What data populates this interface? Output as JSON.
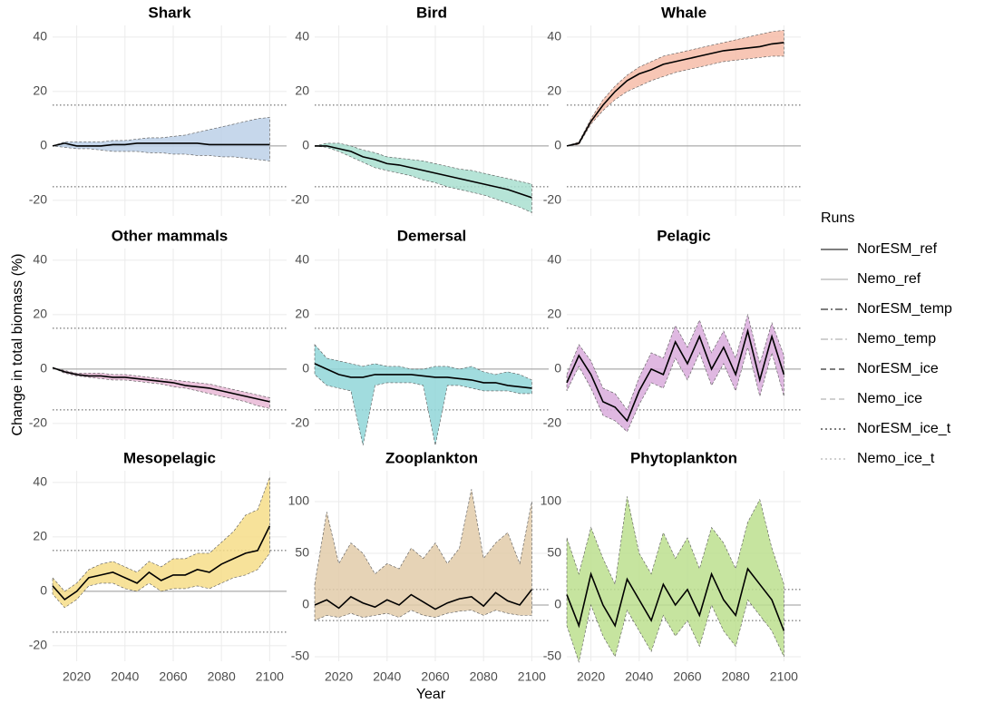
{
  "figure": {
    "xlabel": "Year",
    "ylabel": "Change in total biomass (%)",
    "legend_title": "Runs",
    "legend": [
      {
        "name": "NorESM_ref",
        "color": "#333333",
        "linestyle": "solid"
      },
      {
        "name": "Nemo_ref",
        "color": "#b5b5b5",
        "linestyle": "solid"
      },
      {
        "name": "NorESM_temp",
        "color": "#333333",
        "linestyle": "dashdot"
      },
      {
        "name": "Nemo_temp",
        "color": "#b5b5b5",
        "linestyle": "dashdot"
      },
      {
        "name": "NorESM_ice",
        "color": "#333333",
        "linestyle": "dashed"
      },
      {
        "name": "Nemo_ice",
        "color": "#b5b5b5",
        "linestyle": "dashed"
      },
      {
        "name": "NorESM_ice_t",
        "color": "#333333",
        "linestyle": "dotted"
      },
      {
        "name": "Nemo_ice_t",
        "color": "#b5b5b5",
        "linestyle": "dotted"
      }
    ]
  },
  "chart_data": [
    {
      "type": "band-line",
      "title": "Shark",
      "x": [
        2010,
        2015,
        2020,
        2025,
        2030,
        2035,
        2040,
        2045,
        2050,
        2055,
        2060,
        2065,
        2070,
        2075,
        2080,
        2085,
        2090,
        2095,
        2100
      ],
      "values": [
        0,
        1,
        0,
        0,
        0,
        0.5,
        0.5,
        1,
        1,
        1,
        1,
        1,
        1,
        0.5,
        0.5,
        0.5,
        0.5,
        0.5,
        0.5
      ],
      "color": "#000000",
      "band": {
        "lower": [
          0,
          -0.5,
          -1,
          -1,
          -1.5,
          -2,
          -2,
          -2,
          -2.5,
          -2.5,
          -3,
          -3,
          -3.5,
          -3.5,
          -4,
          -4,
          -4.5,
          -5,
          -5.5
        ],
        "upper": [
          0,
          1.5,
          1.5,
          1.5,
          1.5,
          2,
          2,
          2.5,
          3,
          3,
          3.5,
          4,
          5,
          6,
          7,
          8,
          9,
          10,
          10.5
        ],
        "color": "#bcd0e8"
      },
      "xlim": [
        2010,
        2107
      ],
      "xticks": [
        2020,
        2040,
        2060,
        2080,
        2100
      ],
      "ylim": [
        -25.7,
        44.3
      ],
      "yticks": [
        -20,
        0,
        20,
        40
      ],
      "reference_lines": [
        -15,
        15
      ],
      "baseline": 0,
      "grid": true
    },
    {
      "type": "band-line",
      "title": "Bird",
      "x": [
        2010,
        2015,
        2020,
        2025,
        2030,
        2035,
        2040,
        2045,
        2050,
        2055,
        2060,
        2065,
        2070,
        2075,
        2080,
        2085,
        2090,
        2095,
        2100
      ],
      "values": [
        0,
        0,
        -1,
        -2,
        -4,
        -5,
        -6.5,
        -7,
        -8,
        -9,
        -10,
        -11,
        -12,
        -13,
        -14,
        -15,
        -16,
        -17.5,
        -19
      ],
      "color": "#000000",
      "band": {
        "lower": [
          0,
          -0.5,
          -2,
          -4,
          -6,
          -8,
          -9,
          -10,
          -11,
          -12.5,
          -13.5,
          -15,
          -16,
          -17,
          -18,
          -19.5,
          -21,
          -22.5,
          -24.5
        ],
        "upper": [
          0,
          1,
          1,
          0,
          -1.5,
          -2.5,
          -4,
          -4.5,
          -5,
          -5.5,
          -6.5,
          -7.5,
          -8.5,
          -9,
          -10,
          -11,
          -12,
          -13,
          -14
        ],
        "color": "#a9dfd0"
      },
      "xlim": [
        2010,
        2107
      ],
      "xticks": [
        2020,
        2040,
        2060,
        2080,
        2100
      ],
      "ylim": [
        -25.7,
        44.3
      ],
      "yticks": [
        -20,
        0,
        20,
        40
      ],
      "reference_lines": [
        -15,
        15
      ],
      "baseline": 0,
      "grid": true
    },
    {
      "type": "band-line",
      "title": "Whale",
      "x": [
        2010,
        2015,
        2020,
        2025,
        2030,
        2035,
        2040,
        2045,
        2050,
        2055,
        2060,
        2065,
        2070,
        2075,
        2080,
        2085,
        2090,
        2095,
        2100
      ],
      "values": [
        0,
        1,
        9,
        15,
        20,
        24,
        26.5,
        28,
        30,
        31,
        32,
        33,
        34,
        35,
        35.5,
        36,
        36.5,
        37.5,
        38
      ],
      "color": "#000000",
      "band": {
        "lower": [
          0,
          0.5,
          8,
          13,
          17,
          20,
          22,
          24,
          25.5,
          27,
          28,
          29,
          30,
          31,
          31.5,
          32,
          32.5,
          33,
          33
        ],
        "upper": [
          0,
          1.5,
          10,
          17,
          22,
          26,
          29,
          31,
          33,
          34,
          35,
          36,
          37,
          38,
          39,
          40,
          41,
          42,
          42.5
        ],
        "color": "#f6bca8"
      },
      "xlim": [
        2010,
        2107
      ],
      "xticks": [
        2020,
        2040,
        2060,
        2080,
        2100
      ],
      "ylim": [
        -25.7,
        44.3
      ],
      "yticks": [
        -20,
        0,
        20,
        40
      ],
      "reference_lines": [
        -15,
        15
      ],
      "baseline": 0,
      "grid": true
    },
    {
      "type": "band-line",
      "title": "Other mammals",
      "x": [
        2010,
        2015,
        2020,
        2025,
        2030,
        2035,
        2040,
        2045,
        2050,
        2055,
        2060,
        2065,
        2070,
        2075,
        2080,
        2085,
        2090,
        2095,
        2100
      ],
      "values": [
        0.5,
        -1,
        -2,
        -2.5,
        -2.5,
        -3,
        -3,
        -3.5,
        -4,
        -4.5,
        -5,
        -6,
        -6.5,
        -7,
        -8,
        -9,
        -10,
        -11,
        -12
      ],
      "color": "#000000",
      "band": {
        "lower": [
          0.5,
          -1.5,
          -2.5,
          -3,
          -3.5,
          -4,
          -4,
          -4.5,
          -5,
          -5.5,
          -6.5,
          -7,
          -8,
          -9,
          -10,
          -11,
          -12,
          -13.5,
          -14.5
        ],
        "upper": [
          0.5,
          -0.5,
          -1.5,
          -1.5,
          -1.5,
          -2,
          -2,
          -2.5,
          -3,
          -3.5,
          -4,
          -4.5,
          -5,
          -5.5,
          -6.5,
          -7.5,
          -8.5,
          -9.5,
          -10.5
        ],
        "color": "#e9b9d6"
      },
      "xlim": [
        2010,
        2107
      ],
      "xticks": [
        2020,
        2040,
        2060,
        2080,
        2100
      ],
      "ylim": [
        -25.7,
        44.3
      ],
      "yticks": [
        -20,
        0,
        20,
        40
      ],
      "reference_lines": [
        -15,
        15
      ],
      "baseline": 0,
      "grid": true
    },
    {
      "type": "band-line",
      "title": "Demersal",
      "x": [
        2010,
        2015,
        2020,
        2025,
        2030,
        2035,
        2040,
        2045,
        2050,
        2055,
        2060,
        2065,
        2070,
        2075,
        2080,
        2085,
        2090,
        2095,
        2100
      ],
      "values": [
        2,
        0,
        -2,
        -3,
        -3,
        -2,
        -2,
        -2,
        -2,
        -2.5,
        -3,
        -3,
        -3.5,
        -4,
        -5,
        -5,
        -6,
        -6.5,
        -7
      ],
      "color": "#000000",
      "band": {
        "lower": [
          -2,
          -6,
          -7,
          -8,
          -28,
          -6,
          -5,
          -5,
          -5,
          -6,
          -28,
          -6,
          -6,
          -7,
          -8,
          -8,
          -8,
          -9,
          -9
        ],
        "upper": [
          9,
          4,
          3,
          2,
          1,
          2,
          1,
          1,
          0,
          0,
          1,
          1,
          0,
          1,
          -1,
          -2,
          -1,
          -2,
          -4
        ],
        "color": "#91d6d8"
      },
      "xlim": [
        2010,
        2107
      ],
      "xticks": [
        2020,
        2040,
        2060,
        2080,
        2100
      ],
      "ylim": [
        -25.7,
        44.3
      ],
      "yticks": [
        -20,
        0,
        20,
        40
      ],
      "reference_lines": [
        -15,
        15
      ],
      "baseline": 0,
      "grid": true
    },
    {
      "type": "band-line",
      "title": "Pelagic",
      "x": [
        2010,
        2015,
        2020,
        2025,
        2030,
        2035,
        2040,
        2045,
        2050,
        2055,
        2060,
        2065,
        2070,
        2075,
        2080,
        2085,
        2090,
        2095,
        2100
      ],
      "values": [
        -5,
        5,
        -2,
        -12,
        -14,
        -19,
        -8,
        0,
        -2,
        10,
        2,
        12,
        0,
        8,
        -2,
        14,
        -4,
        12,
        -2
      ],
      "color": "#000000",
      "band": {
        "lower": [
          -8,
          1,
          -7,
          -17,
          -19,
          -23,
          -13,
          -5,
          -7,
          4,
          -4,
          6,
          -6,
          2,
          -8,
          8,
          -10,
          6,
          -10
        ],
        "upper": [
          -2,
          9,
          3,
          -7,
          -9,
          -15,
          -3,
          6,
          4,
          16,
          8,
          18,
          6,
          14,
          4,
          20,
          2,
          17,
          5
        ],
        "color": "#d9acdc"
      },
      "xlim": [
        2010,
        2107
      ],
      "xticks": [
        2020,
        2040,
        2060,
        2080,
        2100
      ],
      "ylim": [
        -25.7,
        44.3
      ],
      "yticks": [
        -20,
        0,
        20,
        40
      ],
      "reference_lines": [
        -15,
        15
      ],
      "baseline": 0,
      "grid": true
    },
    {
      "type": "band-line",
      "title": "Mesopelagic",
      "x": [
        2010,
        2015,
        2020,
        2025,
        2030,
        2035,
        2040,
        2045,
        2050,
        2055,
        2060,
        2065,
        2070,
        2075,
        2080,
        2085,
        2090,
        2095,
        2100
      ],
      "values": [
        2,
        -3,
        0,
        5,
        6,
        7,
        5,
        3,
        7,
        4,
        6,
        6,
        8,
        7,
        10,
        12,
        14,
        15,
        24
      ],
      "color": "#000000",
      "band": {
        "lower": [
          -1,
          -6,
          -3,
          2,
          3,
          3,
          1,
          0,
          3,
          0,
          1,
          1,
          2,
          1,
          3,
          5,
          6,
          8,
          14
        ],
        "upper": [
          5,
          0,
          3,
          8,
          10,
          11,
          9,
          7,
          11,
          9,
          12,
          12,
          14,
          14,
          18,
          22,
          28,
          30,
          42
        ],
        "color": "#f6dd88"
      },
      "xlim": [
        2010,
        2107
      ],
      "xticks": [
        2020,
        2040,
        2060,
        2080,
        2100
      ],
      "ylim": [
        -25.7,
        44.3
      ],
      "yticks": [
        -20,
        0,
        20,
        40
      ],
      "reference_lines": [
        -15,
        15
      ],
      "baseline": 0,
      "grid": true
    },
    {
      "type": "band-line",
      "title": "Zooplankton",
      "x": [
        2010,
        2015,
        2020,
        2025,
        2030,
        2035,
        2040,
        2045,
        2050,
        2055,
        2060,
        2065,
        2070,
        2075,
        2080,
        2085,
        2090,
        2095,
        2100
      ],
      "values": [
        0,
        5,
        -3,
        8,
        2,
        -2,
        5,
        0,
        10,
        3,
        -4,
        2,
        6,
        8,
        -1,
        12,
        4,
        0,
        15
      ],
      "color": "#000000",
      "band": {
        "lower": [
          -15,
          -10,
          -12,
          -8,
          -12,
          -10,
          -8,
          -12,
          -5,
          -10,
          -12,
          -8,
          -6,
          -5,
          -10,
          -5,
          -8,
          -10,
          -10
        ],
        "upper": [
          20,
          90,
          40,
          60,
          50,
          30,
          40,
          35,
          55,
          45,
          60,
          40,
          55,
          112,
          45,
          60,
          70,
          40,
          100
        ],
        "color": "#e2cba9"
      },
      "xlim": [
        2010,
        2107
      ],
      "xticks": [
        2020,
        2040,
        2060,
        2080,
        2100
      ],
      "ylim": [
        -54.4,
        129.8
      ],
      "yticks": [
        -50,
        0,
        50,
        100
      ],
      "reference_lines": [
        -15,
        15
      ],
      "baseline": 0,
      "grid": true
    },
    {
      "type": "band-line",
      "title": "Phytoplankton",
      "x": [
        2010,
        2015,
        2020,
        2025,
        2030,
        2035,
        2040,
        2045,
        2050,
        2055,
        2060,
        2065,
        2070,
        2075,
        2080,
        2085,
        2090,
        2095,
        2100
      ],
      "values": [
        10,
        -20,
        30,
        0,
        -20,
        25,
        5,
        -15,
        20,
        0,
        15,
        -10,
        30,
        5,
        -10,
        35,
        20,
        5,
        -25
      ],
      "color": "#000000",
      "band": {
        "lower": [
          -20,
          -55,
          0,
          -30,
          -50,
          -5,
          -25,
          -45,
          -10,
          -30,
          -15,
          -40,
          0,
          -25,
          -40,
          5,
          -10,
          -25,
          -50
        ],
        "upper": [
          65,
          30,
          75,
          45,
          20,
          105,
          50,
          30,
          70,
          45,
          65,
          35,
          75,
          60,
          35,
          80,
          102,
          55,
          20
        ],
        "color": "#bcdf8e"
      },
      "xlim": [
        2010,
        2107
      ],
      "xticks": [
        2020,
        2040,
        2060,
        2080,
        2100
      ],
      "ylim": [
        -54.4,
        129.8
      ],
      "yticks": [
        -50,
        0,
        50,
        100
      ],
      "reference_lines": [
        -15,
        15
      ],
      "baseline": 0,
      "grid": true
    }
  ]
}
